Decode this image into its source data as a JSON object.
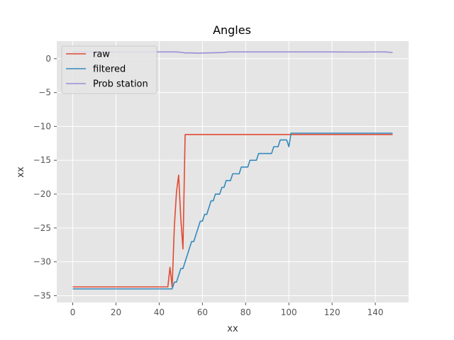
{
  "chart_data": {
    "type": "line",
    "title": "Angles",
    "xlabel": "xx",
    "ylabel": "xx",
    "xlim": [
      -7.4,
      155.4
    ],
    "ylim": [
      -36.0,
      2.6
    ],
    "xticks": [
      0,
      20,
      40,
      60,
      80,
      100,
      120,
      140
    ],
    "yticks": [
      0,
      -5,
      -10,
      -15,
      -20,
      -25,
      -30,
      -35
    ],
    "xtick_labels": [
      "0",
      "20",
      "40",
      "60",
      "80",
      "100",
      "120",
      "140"
    ],
    "ytick_labels": [
      "0",
      "−5",
      "−10",
      "−15",
      "−20",
      "−25",
      "−30",
      "−35"
    ],
    "grid": true,
    "legend_location": "upper left",
    "colors": {
      "background": "#e5e5e5",
      "grid": "#ffffff",
      "raw": "#e24a33",
      "filtered": "#348abd",
      "prob_station": "#988ed5"
    },
    "series": [
      {
        "name": "raw",
        "color": "#e24a33",
        "x": [
          0,
          44,
          45,
          46,
          47,
          48,
          49,
          50,
          51,
          52,
          148
        ],
        "y": [
          -33.7,
          -33.7,
          -30.8,
          -33.7,
          -24.8,
          -19.7,
          -17.2,
          -23.6,
          -28.1,
          -11.2,
          -11.2
        ]
      },
      {
        "name": "filtered",
        "color": "#348abd",
        "x": [
          0,
          46,
          47,
          48,
          49,
          50,
          51,
          52,
          53,
          54,
          55,
          56,
          57,
          58,
          59,
          60,
          61,
          62,
          63,
          64,
          65,
          66,
          67,
          68,
          69,
          70,
          71,
          72,
          73,
          74,
          75,
          76,
          77,
          78,
          79,
          80,
          81,
          82,
          83,
          84,
          85,
          86,
          87,
          88,
          89,
          90,
          91,
          92,
          93,
          94,
          95,
          96,
          97,
          98,
          99,
          100,
          101,
          148
        ],
        "y": [
          -34,
          -34,
          -33,
          -33,
          -32,
          -31,
          -31,
          -30,
          -29,
          -28,
          -27,
          -27,
          -26,
          -25,
          -24,
          -24,
          -23,
          -23,
          -22,
          -21,
          -21,
          -20,
          -20,
          -20,
          -19,
          -19,
          -18,
          -18,
          -18,
          -17,
          -17,
          -17,
          -17,
          -16,
          -16,
          -16,
          -16,
          -15,
          -15,
          -15,
          -15,
          -14,
          -14,
          -14,
          -14,
          -14,
          -14,
          -14,
          -13,
          -13,
          -13,
          -12,
          -12,
          -12,
          -12,
          -13,
          -11,
          -11
        ]
      },
      {
        "name": "Prob station",
        "color": "#988ed5",
        "x": [
          0,
          10,
          20,
          30,
          40,
          45,
          48,
          50,
          52,
          55,
          58,
          62,
          66,
          70,
          72,
          80,
          90,
          100,
          110,
          120,
          130,
          140,
          145,
          148
        ],
        "y": [
          1.0,
          1.0,
          1.0,
          1.0,
          1.0,
          1.0,
          1.0,
          0.95,
          0.85,
          0.85,
          0.82,
          0.85,
          0.88,
          0.92,
          1.0,
          1.0,
          1.0,
          1.0,
          1.0,
          1.0,
          0.98,
          1.0,
          1.0,
          0.9
        ]
      }
    ]
  }
}
